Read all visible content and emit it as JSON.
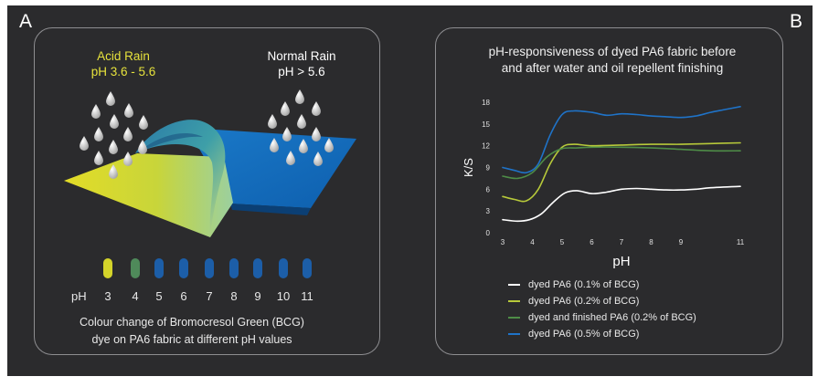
{
  "panels": {
    "a_letter": "A",
    "b_letter": "B"
  },
  "acid_rain": {
    "title": "Acid Rain",
    "range": "pH 3.6 - 5.6",
    "color": "#e6e23c"
  },
  "normal_rain": {
    "title": "Normal Rain",
    "range": "pH > 5.6",
    "color": "#ffffff"
  },
  "ph_scale": {
    "label": "pH",
    "values": [
      "3",
      "4",
      "5",
      "6",
      "7",
      "8",
      "9",
      "10",
      "11"
    ],
    "colors": [
      "#d4d42a",
      "#4f8a5a",
      "#1c5ea8",
      "#1c5ea8",
      "#1c5ea8",
      "#1c5ea8",
      "#1c5ea8",
      "#1c5ea8",
      "#1c5ea8"
    ]
  },
  "caption": {
    "line1": "Colour change of Bromocresol Green (BCG)",
    "line2": "dye on PA6 fabric at different pH values"
  },
  "chart_title": {
    "line1": "pH-responsiveness of dyed PA6 fabric before",
    "line2": "and after water and oil repellent finishing"
  },
  "chart_data": {
    "type": "line",
    "xlabel": "pH",
    "ylabel": "K/S",
    "xlim": [
      3,
      11
    ],
    "ylim": [
      0,
      18
    ],
    "xticks": [
      "3",
      "4",
      "5",
      "6",
      "7",
      "8",
      "9",
      "11"
    ],
    "xtick_values": [
      3,
      4,
      5,
      6,
      7,
      8,
      9,
      11
    ],
    "yticks": [
      "0",
      "3",
      "6",
      "9",
      "12",
      "15",
      "18"
    ],
    "ytick_values": [
      0,
      3,
      6,
      9,
      12,
      15,
      18
    ],
    "grid": false,
    "legend_position": "bottom",
    "series": [
      {
        "name": "dyed PA6 (0.1% of BCG)",
        "color": "#ffffff",
        "x": [
          3.0,
          3.5,
          3.9,
          4.3,
          4.7,
          5.1,
          5.5,
          6.0,
          6.5,
          7.0,
          7.5,
          8.0,
          8.5,
          9.0,
          9.5,
          10.0,
          11.0
        ],
        "y": [
          1.8,
          1.6,
          1.8,
          2.6,
          4.2,
          5.5,
          5.8,
          5.4,
          5.6,
          6.0,
          6.1,
          6.0,
          5.9,
          5.9,
          6.0,
          6.2,
          6.4
        ]
      },
      {
        "name": "dyed PA6 (0.2% of BCG)",
        "color": "#b7c93a",
        "x": [
          3.0,
          3.4,
          3.8,
          4.2,
          4.6,
          5.0,
          5.4,
          6.0,
          7.0,
          8.0,
          9.0,
          10.0,
          11.0
        ],
        "y": [
          5.0,
          4.6,
          4.4,
          6.0,
          9.5,
          11.8,
          12.2,
          12.0,
          12.1,
          12.2,
          12.2,
          12.3,
          12.4
        ]
      },
      {
        "name": "dyed and finished PA6 (0.2% of BCG)",
        "color": "#4e8c47",
        "x": [
          3.0,
          3.5,
          4.0,
          4.5,
          5.0,
          5.5,
          6.0,
          7.0,
          8.0,
          9.0,
          10.0,
          11.0
        ],
        "y": [
          7.8,
          7.5,
          8.3,
          10.5,
          11.6,
          11.7,
          11.8,
          11.8,
          11.7,
          11.5,
          11.3,
          11.3
        ]
      },
      {
        "name": "dyed PA6 (0.5% of BCG)",
        "color": "#1f73c8",
        "x": [
          3.0,
          3.4,
          3.8,
          4.2,
          4.6,
          5.0,
          5.4,
          6.0,
          6.5,
          7.0,
          7.5,
          8.0,
          8.5,
          9.0,
          9.5,
          10.0,
          10.5,
          11.0
        ],
        "y": [
          9.0,
          8.6,
          8.3,
          9.5,
          13.5,
          16.3,
          16.8,
          16.6,
          16.2,
          16.4,
          16.3,
          16.1,
          16.0,
          15.9,
          16.1,
          16.6,
          17.0,
          17.4
        ]
      }
    ]
  }
}
